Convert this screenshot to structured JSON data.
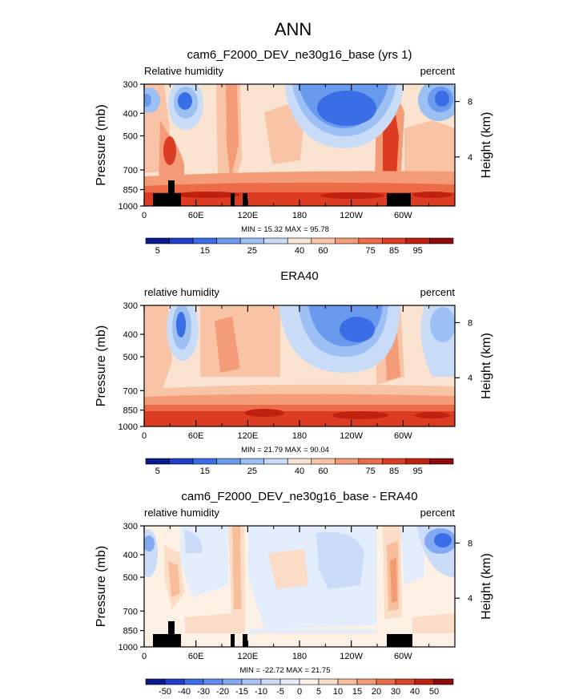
{
  "figure": {
    "title": "ANN"
  },
  "colors": {
    "seq": [
      "#0b1a8c",
      "#1f3fc8",
      "#3a6ee6",
      "#6a9aee",
      "#9cc0f4",
      "#c8dcf8",
      "#fbe3d2",
      "#f9c4a6",
      "#f49c78",
      "#ec6c48",
      "#dc3c22",
      "#c0200e",
      "#8c0b0b"
    ],
    "diff": [
      "#0b1a8c",
      "#1f3fc8",
      "#3a6ee6",
      "#5d8cee",
      "#84a8f2",
      "#aac4f6",
      "#cadcf8",
      "#e4edfb",
      "#fdf1e6",
      "#fbdcc6",
      "#f8be9c",
      "#f39a72",
      "#ea6e4a",
      "#d94426",
      "#bb210f",
      "#8c0b0b"
    ],
    "land": "#000000"
  },
  "chart_data": [
    {
      "type": "heatmap",
      "title": "cam6_F2000_DEV_ne30g16_base (yrs 1)",
      "left_label": "Relative humidity",
      "right_label": "percent",
      "ylabel": "Pressure (mb)",
      "ylabel2": "Height (km)",
      "x_ticks": [
        "0",
        "60E",
        "120E",
        "180",
        "120W",
        "60W"
      ],
      "y_ticks": [
        "300",
        "400",
        "500",
        "700",
        "850",
        "1000"
      ],
      "height_ticks": [
        "8",
        "4"
      ],
      "stats": "MIN =   15.32   MAX =   95.78",
      "colorbar_labels": [
        "5",
        "15",
        "25",
        "40",
        "60",
        "75",
        "85",
        "95"
      ],
      "min": 15.32,
      "max": 95.78
    },
    {
      "type": "heatmap",
      "title": "ERA40",
      "left_label": "relative humidity",
      "right_label": "percent",
      "ylabel": "Pressure (mb)",
      "ylabel2": "Height (km)",
      "x_ticks": [
        "0",
        "60E",
        "120E",
        "180",
        "120W",
        "60W"
      ],
      "y_ticks": [
        "300",
        "400",
        "500",
        "700",
        "850",
        "1000"
      ],
      "height_ticks": [
        "8",
        "4"
      ],
      "stats": "MIN =   21.79   MAX =   90.04",
      "colorbar_labels": [
        "5",
        "15",
        "25",
        "40",
        "60",
        "75",
        "85",
        "95"
      ],
      "min": 21.79,
      "max": 90.04
    },
    {
      "type": "heatmap",
      "title": "cam6_F2000_DEV_ne30g16_base - ERA40",
      "left_label": "relative humidity",
      "right_label": "percent",
      "ylabel": "Pressure (mb)",
      "ylabel2": "Height (km)",
      "x_ticks": [
        "0",
        "60E",
        "120E",
        "180",
        "120W",
        "60W"
      ],
      "y_ticks": [
        "300",
        "400",
        "500",
        "700",
        "850",
        "1000"
      ],
      "height_ticks": [
        "8",
        "4"
      ],
      "stats": "MIN = -22.72   MAX =   21.75",
      "colorbar_labels": [
        "-50",
        "-40",
        "-30",
        "-20",
        "-15",
        "-10",
        "-5",
        "0",
        "5",
        "10",
        "15",
        "20",
        "30",
        "40",
        "50"
      ],
      "min": -22.72,
      "max": 21.75
    }
  ]
}
